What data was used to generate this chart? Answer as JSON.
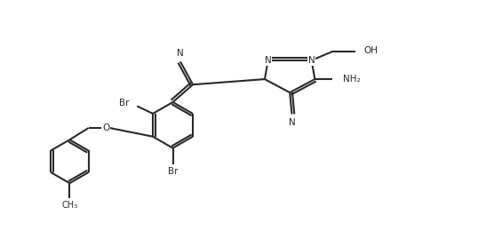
{
  "background_color": "#ffffff",
  "line_color": "#2a2a2a",
  "line_width": 1.5,
  "fig_width": 5.47,
  "fig_height": 2.6,
  "dpi": 100,
  "xlim": [
    0,
    11
  ],
  "ylim": [
    0,
    5.5
  ]
}
